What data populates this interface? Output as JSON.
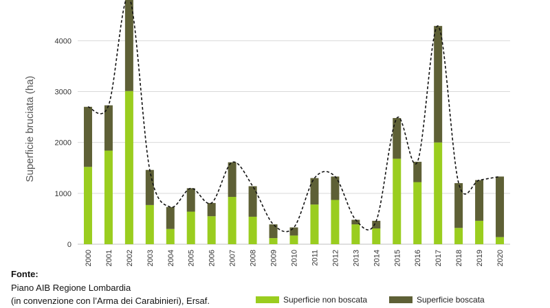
{
  "chart_data": {
    "type": "bar",
    "stacked": true,
    "ylabel": "Superficie bruciata (ha)",
    "xlabel": "",
    "ylim": [
      0,
      4800
    ],
    "yticks": [
      0,
      1000,
      2000,
      3000,
      4000
    ],
    "grid": true,
    "legend_position": "bottom-right",
    "categories": [
      "2000",
      "2001",
      "2002",
      "2003",
      "2004",
      "2005",
      "2006",
      "2007",
      "2008",
      "2009",
      "2010",
      "2011",
      "2012",
      "2013",
      "2014",
      "2015",
      "2016",
      "2017",
      "2018",
      "2019",
      "2020"
    ],
    "series": [
      {
        "name": "Superficie non boscata",
        "color": "#9acd1f",
        "values": [
          1520,
          1840,
          3010,
          770,
          300,
          640,
          550,
          930,
          540,
          120,
          170,
          780,
          870,
          390,
          310,
          1680,
          1220,
          2000,
          320,
          460,
          140
        ]
      },
      {
        "name": "Superficie boscata",
        "color": "#5e6036",
        "values": [
          1180,
          890,
          1840,
          690,
          430,
          460,
          260,
          680,
          600,
          270,
          160,
          520,
          460,
          90,
          150,
          800,
          400,
          2290,
          880,
          800,
          1190
        ]
      }
    ],
    "trendline": {
      "style": "dashed",
      "color": "#111111"
    }
  },
  "source": {
    "label": "Fonte:",
    "line1": "Piano AIB Regione Lombardia",
    "line2": "(in convenzione  con l’Arma dei Carabinieri), Ersaf."
  }
}
